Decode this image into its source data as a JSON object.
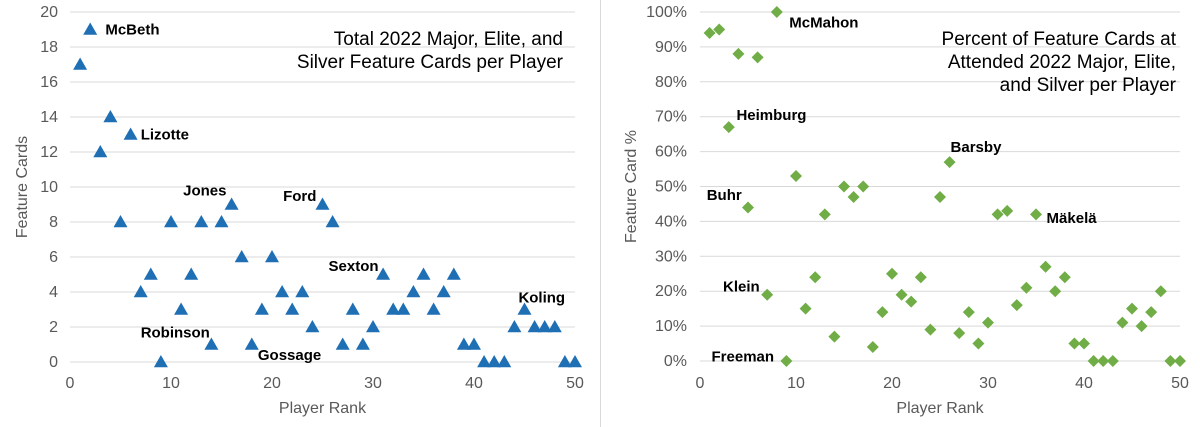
{
  "chart_data": [
    {
      "type": "scatter",
      "title_lines": [
        "Total 2022 Major, Elite, and",
        "Silver Feature Cards per Player"
      ],
      "xlabel": "Player Rank",
      "ylabel": "Feature Cards",
      "xlim": [
        0,
        50
      ],
      "ylim": [
        0,
        20
      ],
      "xticks": [
        "0",
        "10",
        "20",
        "30",
        "40",
        "50"
      ],
      "yticks": [
        "0",
        "2",
        "4",
        "6",
        "8",
        "10",
        "12",
        "14",
        "16",
        "18",
        "20"
      ],
      "marker": "triangle",
      "color": "#1f6fb5",
      "grid": true,
      "x": [
        1,
        2,
        3,
        4,
        5,
        6,
        7,
        8,
        9,
        10,
        11,
        12,
        13,
        14,
        15,
        16,
        17,
        18,
        19,
        20,
        21,
        22,
        23,
        24,
        25,
        26,
        27,
        28,
        29,
        30,
        31,
        32,
        33,
        34,
        35,
        36,
        37,
        38,
        39,
        40,
        41,
        42,
        43,
        44,
        45,
        46,
        47,
        48,
        49,
        50
      ],
      "y": [
        17,
        19,
        12,
        14,
        8,
        13,
        4,
        5,
        0,
        8,
        3,
        5,
        8,
        1,
        8,
        9,
        6,
        1,
        3,
        6,
        4,
        3,
        4,
        2,
        9,
        8,
        1,
        3,
        1,
        2,
        5,
        3,
        3,
        4,
        5,
        3,
        4,
        5,
        1,
        1,
        0,
        0,
        0,
        2,
        3,
        2,
        2,
        2,
        0,
        0
      ],
      "annotations": [
        {
          "text": "McBeth",
          "x": 3.5,
          "y": 19
        },
        {
          "text": "Lizotte",
          "x": 7,
          "y": 13
        },
        {
          "text": "Jones",
          "x": 11.2,
          "y": 9.8
        },
        {
          "text": "Ford",
          "x": 21.1,
          "y": 9.5
        },
        {
          "text": "Sexton",
          "x": 25.6,
          "y": 5.5
        },
        {
          "text": "Koling",
          "x": 44.4,
          "y": 3.7
        },
        {
          "text": "Robinson",
          "x": 7,
          "y": 1.7
        },
        {
          "text": "Gossage",
          "x": 18.6,
          "y": 0.4
        }
      ]
    },
    {
      "type": "scatter",
      "title_lines": [
        "Percent of Feature Cards at",
        "Attended 2022 Major, Elite,",
        "and Silver per Player"
      ],
      "xlabel": "Player Rank",
      "ylabel": "Feature Card %",
      "xlim": [
        0,
        50
      ],
      "ylim": [
        0,
        100
      ],
      "xticks": [
        "0",
        "10",
        "20",
        "30",
        "40",
        "50"
      ],
      "yticks": [
        "0%",
        "10%",
        "20%",
        "30%",
        "40%",
        "50%",
        "60%",
        "70%",
        "80%",
        "90%",
        "100%"
      ],
      "marker": "diamond",
      "color": "#70ad47",
      "grid": true,
      "x": [
        1,
        2,
        3,
        4,
        5,
        6,
        7,
        8,
        9,
        10,
        11,
        12,
        13,
        14,
        15,
        16,
        17,
        18,
        19,
        20,
        21,
        22,
        23,
        24,
        25,
        26,
        27,
        28,
        29,
        30,
        31,
        32,
        33,
        34,
        35,
        36,
        37,
        38,
        39,
        40,
        41,
        42,
        43,
        44,
        45,
        46,
        47,
        48,
        49,
        50
      ],
      "y": [
        94,
        95,
        67,
        88,
        44,
        87,
        19,
        100,
        0,
        53,
        15,
        24,
        42,
        7,
        50,
        47,
        50,
        4,
        14,
        25,
        19,
        17,
        24,
        9,
        47,
        57,
        8,
        14,
        5,
        11,
        42,
        43,
        16,
        21,
        42,
        27,
        20,
        24,
        5,
        5,
        0,
        0,
        0,
        11,
        15,
        10,
        14,
        20,
        0,
        0
      ],
      "annotations": [
        {
          "text": "McMahon",
          "x": 9.3,
          "y": 97
        },
        {
          "text": "Heimburg",
          "x": 3.8,
          "y": 70.5
        },
        {
          "text": "Barsby",
          "x": 26.1,
          "y": 61.3
        },
        {
          "text": "Buhr",
          "x": 0.7,
          "y": 47.5
        },
        {
          "text": "Mäkelä",
          "x": 36.1,
          "y": 41
        },
        {
          "text": "Klein",
          "x": 2.4,
          "y": 21.3
        },
        {
          "text": "Freeman",
          "x": 1.2,
          "y": 1.3
        }
      ]
    }
  ]
}
